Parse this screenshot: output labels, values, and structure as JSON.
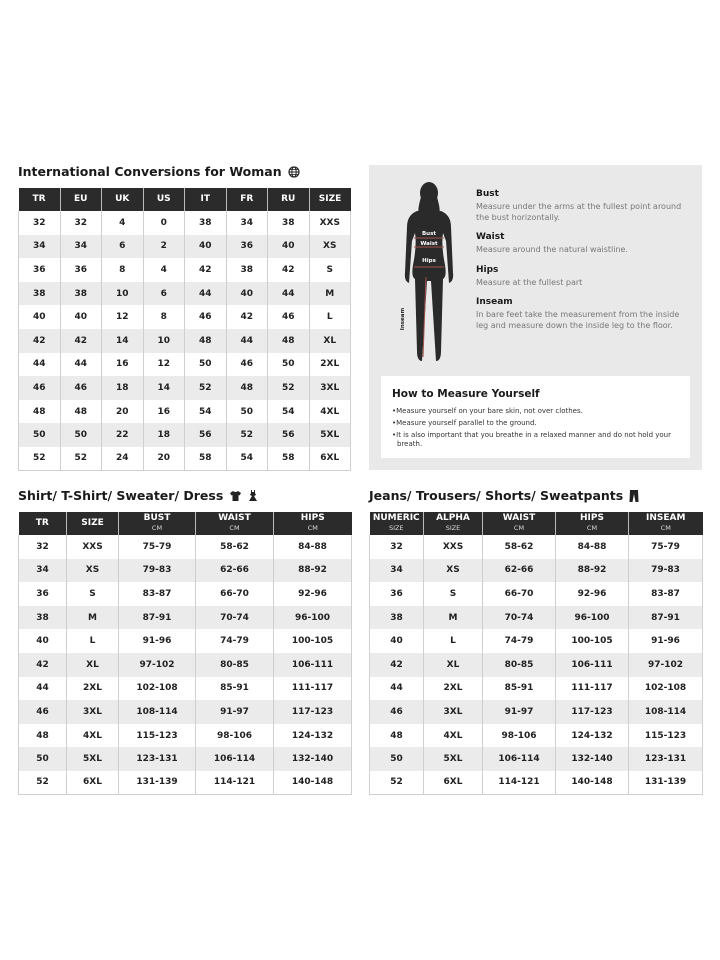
{
  "conversions": {
    "title": "International Conversions for Woman",
    "icon": "globe-icon",
    "headers": [
      "TR",
      "EU",
      "UK",
      "US",
      "IT",
      "FR",
      "RU",
      "SIZE"
    ],
    "rows": [
      [
        "32",
        "32",
        "4",
        "0",
        "38",
        "34",
        "38",
        "XXS"
      ],
      [
        "34",
        "34",
        "6",
        "2",
        "40",
        "36",
        "40",
        "XS"
      ],
      [
        "36",
        "36",
        "8",
        "4",
        "42",
        "38",
        "42",
        "S"
      ],
      [
        "38",
        "38",
        "10",
        "6",
        "44",
        "40",
        "44",
        "M"
      ],
      [
        "40",
        "40",
        "12",
        "8",
        "46",
        "42",
        "46",
        "L"
      ],
      [
        "42",
        "42",
        "14",
        "10",
        "48",
        "44",
        "48",
        "XL"
      ],
      [
        "44",
        "44",
        "16",
        "12",
        "50",
        "46",
        "50",
        "2XL"
      ],
      [
        "46",
        "46",
        "18",
        "14",
        "52",
        "48",
        "52",
        "3XL"
      ],
      [
        "48",
        "48",
        "20",
        "16",
        "54",
        "50",
        "54",
        "4XL"
      ],
      [
        "50",
        "50",
        "22",
        "18",
        "56",
        "52",
        "56",
        "5XL"
      ],
      [
        "52",
        "52",
        "24",
        "20",
        "58",
        "54",
        "58",
        "6XL"
      ]
    ]
  },
  "measure_guide": {
    "figure_labels": {
      "bust": "Bust",
      "waist": "Waist",
      "hips": "Hips",
      "inseam": "Inseam"
    },
    "definitions": [
      {
        "term": "Bust",
        "text": "Measure under the arms at the fullest point around the bust horizontally."
      },
      {
        "term": "Waist",
        "text": "Measure around the natural waistline."
      },
      {
        "term": "Hips",
        "text": "Measure at the fullest part"
      },
      {
        "term": "Inseam",
        "text": "In bare feet take the measurement from the inside leg and measure down the inside leg to the floor."
      }
    ],
    "howto": {
      "title": "How to Measure Yourself",
      "bullets": [
        "Measure yourself on your bare skin, not over clothes.",
        "Measure yourself parallel to the ground.",
        "It is also important that you breathe in a relaxed manner and do not hold your breath."
      ]
    }
  },
  "tops": {
    "title": "Shirt/ T-Shirt/ Sweater/ Dress",
    "icons": [
      "tshirt-icon",
      "dress-icon"
    ],
    "headers": [
      {
        "label": "TR",
        "sub": ""
      },
      {
        "label": "SIZE",
        "sub": ""
      },
      {
        "label": "BUST",
        "sub": "CM"
      },
      {
        "label": "WAIST",
        "sub": "CM"
      },
      {
        "label": "HIPS",
        "sub": "CM"
      }
    ],
    "rows": [
      [
        "32",
        "XXS",
        "75-79",
        "58-62",
        "84-88"
      ],
      [
        "34",
        "XS",
        "79-83",
        "62-66",
        "88-92"
      ],
      [
        "36",
        "S",
        "83-87",
        "66-70",
        "92-96"
      ],
      [
        "38",
        "M",
        "87-91",
        "70-74",
        "96-100"
      ],
      [
        "40",
        "L",
        "91-96",
        "74-79",
        "100-105"
      ],
      [
        "42",
        "XL",
        "97-102",
        "80-85",
        "106-111"
      ],
      [
        "44",
        "2XL",
        "102-108",
        "85-91",
        "111-117"
      ],
      [
        "46",
        "3XL",
        "108-114",
        "91-97",
        "117-123"
      ],
      [
        "48",
        "4XL",
        "115-123",
        "98-106",
        "124-132"
      ],
      [
        "50",
        "5XL",
        "123-131",
        "106-114",
        "132-140"
      ],
      [
        "52",
        "6XL",
        "131-139",
        "114-121",
        "140-148"
      ]
    ]
  },
  "bottoms": {
    "title": "Jeans/ Trousers/ Shorts/ Sweatpants",
    "icons": [
      "trousers-icon"
    ],
    "headers": [
      {
        "label": "NUMERIC",
        "sub": "SIZE"
      },
      {
        "label": "ALPHA",
        "sub": "SIZE"
      },
      {
        "label": "WAIST",
        "sub": "CM"
      },
      {
        "label": "HIPS",
        "sub": "CM"
      },
      {
        "label": "INSEAM",
        "sub": "CM"
      }
    ],
    "rows": [
      [
        "32",
        "XXS",
        "58-62",
        "84-88",
        "75-79"
      ],
      [
        "34",
        "XS",
        "62-66",
        "88-92",
        "79-83"
      ],
      [
        "36",
        "S",
        "66-70",
        "92-96",
        "83-87"
      ],
      [
        "38",
        "M",
        "70-74",
        "96-100",
        "87-91"
      ],
      [
        "40",
        "L",
        "74-79",
        "100-105",
        "91-96"
      ],
      [
        "42",
        "XL",
        "80-85",
        "106-111",
        "97-102"
      ],
      [
        "44",
        "2XL",
        "85-91",
        "111-117",
        "102-108"
      ],
      [
        "46",
        "3XL",
        "91-97",
        "117-123",
        "108-114"
      ],
      [
        "48",
        "4XL",
        "98-106",
        "124-132",
        "115-123"
      ],
      [
        "50",
        "5XL",
        "106-114",
        "132-140",
        "123-131"
      ],
      [
        "52",
        "6XL",
        "114-121",
        "140-148",
        "131-139"
      ]
    ]
  }
}
